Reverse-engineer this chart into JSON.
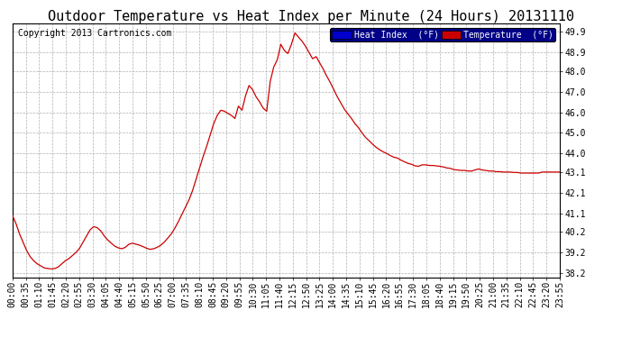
{
  "title": "Outdoor Temperature vs Heat Index per Minute (24 Hours) 20131110",
  "copyright": "Copyright 2013 Cartronics.com",
  "ylim": [
    38.0,
    50.3
  ],
  "yticks": [
    38.2,
    39.2,
    40.2,
    41.1,
    42.1,
    43.1,
    44.0,
    45.0,
    46.0,
    47.0,
    48.0,
    48.9,
    49.9
  ],
  "background_color": "#ffffff",
  "grid_color": "#b0b0b0",
  "line_color": "#cc0000",
  "heat_index_legend_bg": "#0000cc",
  "temp_legend_bg": "#cc0000",
  "title_fontsize": 11,
  "copyright_fontsize": 7,
  "tick_fontsize": 7,
  "x_tick_labels": [
    "00:00",
    "00:35",
    "01:10",
    "01:45",
    "02:20",
    "02:55",
    "03:30",
    "04:05",
    "04:40",
    "05:15",
    "05:50",
    "06:25",
    "07:00",
    "07:35",
    "08:10",
    "08:45",
    "09:20",
    "09:55",
    "10:30",
    "11:05",
    "11:40",
    "12:15",
    "12:50",
    "13:25",
    "14:00",
    "14:35",
    "15:10",
    "15:45",
    "16:20",
    "16:55",
    "17:30",
    "18:05",
    "18:40",
    "19:15",
    "19:50",
    "20:25",
    "21:00",
    "21:35",
    "22:10",
    "22:45",
    "23:20",
    "23:55"
  ],
  "temp_data": [
    41.0,
    40.6,
    40.1,
    39.7,
    39.3,
    39.0,
    38.8,
    38.65,
    38.55,
    38.45,
    38.42,
    38.4,
    38.42,
    38.5,
    38.65,
    38.8,
    38.9,
    39.05,
    39.2,
    39.4,
    39.7,
    40.0,
    40.3,
    40.45,
    40.4,
    40.25,
    40.0,
    39.8,
    39.65,
    39.5,
    39.42,
    39.38,
    39.45,
    39.6,
    39.65,
    39.6,
    39.55,
    39.48,
    39.4,
    39.35,
    39.38,
    39.45,
    39.55,
    39.7,
    39.9,
    40.1,
    40.38,
    40.7,
    41.05,
    41.4,
    41.75,
    42.2,
    42.75,
    43.3,
    43.85,
    44.35,
    44.9,
    45.45,
    45.85,
    46.1,
    46.05,
    45.95,
    45.85,
    45.7,
    46.3,
    46.1,
    46.8,
    47.3,
    47.1,
    46.75,
    46.5,
    46.2,
    46.05,
    47.5,
    48.2,
    48.55,
    49.3,
    49.0,
    48.85,
    49.3,
    49.85,
    49.65,
    49.45,
    49.2,
    48.9,
    48.6,
    48.7,
    48.4,
    48.1,
    47.75,
    47.45,
    47.1,
    46.75,
    46.45,
    46.15,
    45.92,
    45.7,
    45.45,
    45.25,
    45.0,
    44.78,
    44.62,
    44.45,
    44.3,
    44.18,
    44.08,
    44.0,
    43.9,
    43.82,
    43.78,
    43.68,
    43.6,
    43.52,
    43.48,
    43.4,
    43.38,
    43.45,
    43.45,
    43.42,
    43.42,
    43.4,
    43.38,
    43.35,
    43.3,
    43.28,
    43.22,
    43.2,
    43.18,
    43.18,
    43.15,
    43.15,
    43.2,
    43.25,
    43.2,
    43.18,
    43.15,
    43.15,
    43.12,
    43.12,
    43.1,
    43.1,
    43.1,
    43.08,
    43.08,
    43.05,
    43.05,
    43.05,
    43.05,
    43.05,
    43.05,
    43.1,
    43.1,
    43.1,
    43.1,
    43.1,
    43.1
  ]
}
